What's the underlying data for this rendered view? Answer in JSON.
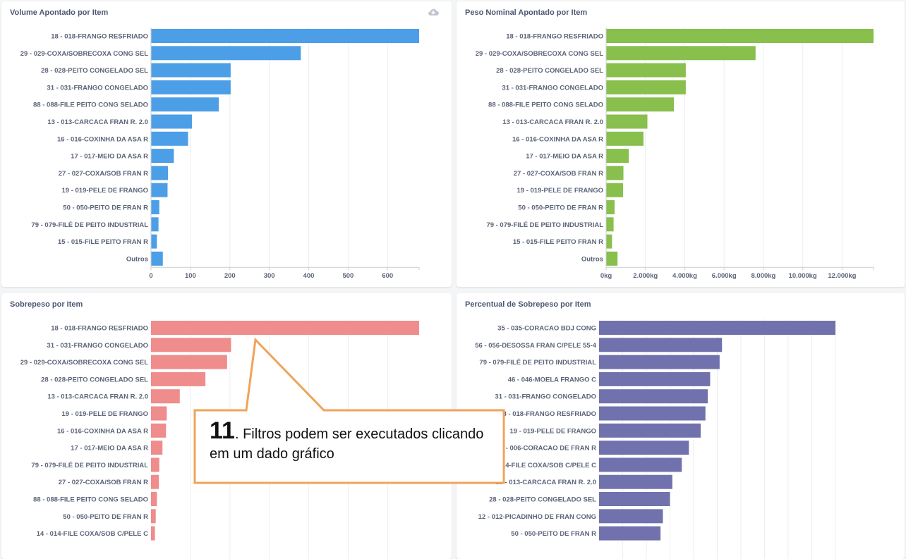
{
  "panels": [
    {
      "title": "Volume Apontado por Item",
      "download_icon": "cloud-download-icon",
      "chart_data": {
        "type": "bar",
        "orientation": "horizontal",
        "color": "#4c9fe6",
        "categories": [
          "18 - 018-FRANGO RESFRIADO",
          "29 - 029-COXA/SOBRECOXA CONG SEL",
          "28 - 028-PEITO CONGELADO SEL",
          "31 - 031-FRANGO CONGELADO",
          "88 - 088-FILE PEITO CONG SELADO",
          "13 - 013-CARCACA FRAN R. 2.0",
          "16 - 016-COXINHA DA ASA R",
          "17 - 017-MEIO DA ASA R",
          "27 - 027-COXA/SOB FRAN R",
          "19 - 019-PELE DE FRANGO",
          "50 - 050-PEITO DE FRAN R",
          "79 - 079-FILÉ DE PEITO INDUSTRIAL",
          "15 - 015-FILE PEITO FRAN R",
          "Outros"
        ],
        "values": [
          680,
          380,
          202,
          202,
          172,
          104,
          94,
          58,
          43,
          42,
          21,
          19,
          15,
          30
        ],
        "xlim": [
          0,
          680
        ],
        "xticks": [
          0,
          100,
          200,
          300,
          400,
          500,
          600
        ],
        "xtick_labels": [
          "0",
          "100",
          "200",
          "300",
          "400",
          "500",
          "600"
        ],
        "grid": true
      }
    },
    {
      "title": "Peso Nominal Apontado por Item",
      "chart_data": {
        "type": "bar",
        "orientation": "horizontal",
        "color": "#88bf4d",
        "categories": [
          "18 - 018-FRANGO RESFRIADO",
          "29 - 029-COXA/SOBRECOXA CONG SEL",
          "28 - 028-PEITO CONGELADO SEL",
          "31 - 031-FRANGO CONGELADO",
          "88 - 088-FILE PEITO CONG SELADO",
          "13 - 013-CARCACA FRAN R. 2.0",
          "16 - 016-COXINHA DA ASA R",
          "17 - 017-MEIO DA ASA R",
          "27 - 027-COXA/SOB FRAN R",
          "19 - 019-PELE DE FRANGO",
          "50 - 050-PEITO DE FRAN R",
          "79 - 079-FILÉ DE PEITO INDUSTRIAL",
          "15 - 015-FILE PEITO FRAN R",
          "Outros"
        ],
        "values": [
          13600,
          7600,
          4050,
          4050,
          3450,
          2100,
          1900,
          1150,
          880,
          860,
          430,
          380,
          300,
          580
        ],
        "xlim": [
          0,
          13600
        ],
        "xticks": [
          0,
          2000,
          4000,
          6000,
          8000,
          10000,
          12000
        ],
        "xtick_labels": [
          "0kg",
          "2.000kg",
          "4.000kg",
          "6.000kg",
          "8.000kg",
          "10.000kg",
          "12.000kg"
        ],
        "grid": true
      }
    },
    {
      "title": "Sobrepeso por Item",
      "chart_data": {
        "type": "bar",
        "orientation": "horizontal",
        "color": "#ef8c8c",
        "categories": [
          "18 - 018-FRANGO RESFRIADO",
          "31 - 031-FRANGO CONGELADO",
          "29 - 029-COXA/SOBRECOXA CONG SEL",
          "28 - 028-PEITO CONGELADO SEL",
          "13 - 013-CARCACA FRAN R. 2.0",
          "19 - 019-PELE DE FRANGO",
          "16 - 016-COXINHA DA ASA R",
          "17 - 017-MEIO DA ASA R",
          "79 - 079-FILÉ DE PEITO INDUSTRIAL",
          "27 - 027-COXA/SOB FRAN R",
          "88 - 088-FILE PEITO CONG SELADO",
          "50 - 050-PEITO DE FRAN R",
          "14 - 014-FILE COXA/SOB C/PELE C"
        ],
        "values": [
          680,
          203,
          193,
          138,
          73,
          40,
          38,
          29,
          21,
          20,
          15,
          12,
          10
        ],
        "xlim": [
          0,
          680
        ],
        "grid": true
      }
    },
    {
      "title": "Percentual de Sobrepeso por Item",
      "chart_data": {
        "type": "bar",
        "orientation": "horizontal",
        "color": "#7172ad",
        "categories": [
          "35 - 035-CORACAO BDJ CONG",
          "56 - 056-DESOSSA FRAN C/PELE 55-4",
          "79 - 079-FILÉ DE PEITO INDUSTRIAL",
          "46 - 046-MOELA FRANGO C",
          "31 - 031-FRANGO CONGELADO",
          "18 - 018-FRANGO RESFRIADO",
          "19 - 019-PELE DE FRANGO",
          "6 - 006-CORACAO DE FRAN R",
          "14 - 014-FILE COXA/SOB C/PELE C",
          "13 - 013-CARCACA FRAN R. 2.0",
          "28 - 028-PEITO CONGELADO SEL",
          "12 - 012-PICADINHO DE FRAN CONG",
          "50 - 050-PEITO DE FRAN R"
        ],
        "values": [
          100,
          52,
          51,
          47,
          46,
          45,
          43,
          38,
          35,
          31,
          30,
          27,
          26
        ],
        "xlim": [
          0,
          100
        ],
        "grid": true
      }
    }
  ],
  "callout": {
    "number": "11",
    "text": ". Filtros podem ser executados clicando em um dado gráfico",
    "border_color": "#f0a35a"
  }
}
